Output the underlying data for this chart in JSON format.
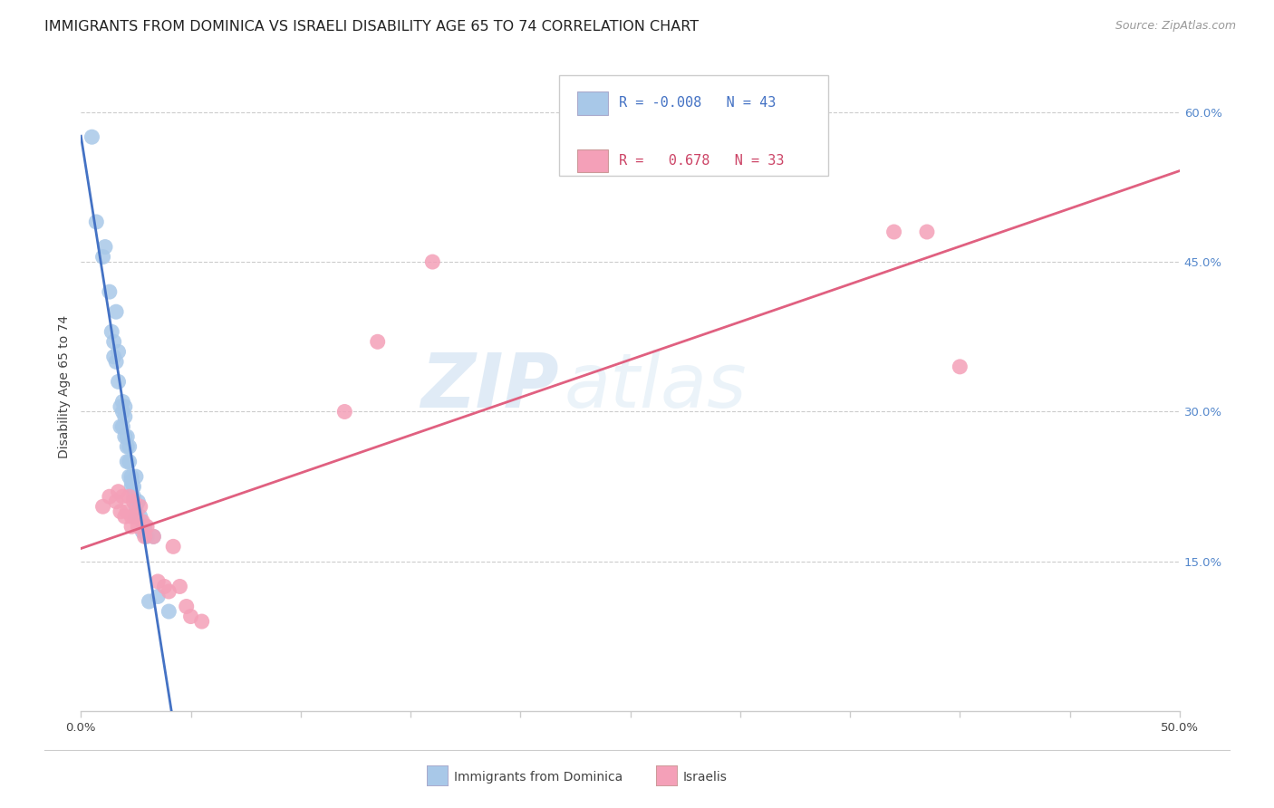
{
  "title": "IMMIGRANTS FROM DOMINICA VS ISRAELI DISABILITY AGE 65 TO 74 CORRELATION CHART",
  "source": "Source: ZipAtlas.com",
  "ylabel": "Disability Age 65 to 74",
  "xlim": [
    0.0,
    0.5
  ],
  "ylim": [
    0.0,
    0.65
  ],
  "xticks": [
    0.0,
    0.05,
    0.1,
    0.15,
    0.2,
    0.25,
    0.3,
    0.35,
    0.4,
    0.45,
    0.5
  ],
  "yticks_right": [
    0.15,
    0.3,
    0.45,
    0.6
  ],
  "ytick_labels_right": [
    "15.0%",
    "30.0%",
    "45.0%",
    "60.0%"
  ],
  "legend_r_blue": "-0.008",
  "legend_n_blue": "43",
  "legend_r_pink": "0.678",
  "legend_n_pink": "33",
  "blue_color": "#a8c8e8",
  "pink_color": "#f4a0b8",
  "blue_line_color": "#4472c4",
  "pink_line_color": "#e06080",
  "watermark_zip": "ZIP",
  "watermark_atlas": "atlas",
  "blue_dots_x": [
    0.005,
    0.007,
    0.01,
    0.011,
    0.013,
    0.014,
    0.015,
    0.015,
    0.016,
    0.016,
    0.017,
    0.017,
    0.018,
    0.018,
    0.019,
    0.019,
    0.019,
    0.02,
    0.02,
    0.02,
    0.021,
    0.021,
    0.021,
    0.022,
    0.022,
    0.022,
    0.023,
    0.023,
    0.023,
    0.024,
    0.024,
    0.025,
    0.025,
    0.025,
    0.026,
    0.027,
    0.028,
    0.029,
    0.03,
    0.031,
    0.033,
    0.035,
    0.04
  ],
  "blue_dots_y": [
    0.575,
    0.49,
    0.455,
    0.465,
    0.42,
    0.38,
    0.355,
    0.37,
    0.4,
    0.35,
    0.33,
    0.36,
    0.305,
    0.285,
    0.31,
    0.3,
    0.285,
    0.295,
    0.275,
    0.305,
    0.275,
    0.265,
    0.25,
    0.265,
    0.25,
    0.235,
    0.235,
    0.225,
    0.23,
    0.225,
    0.215,
    0.205,
    0.195,
    0.235,
    0.21,
    0.195,
    0.18,
    0.185,
    0.175,
    0.11,
    0.175,
    0.115,
    0.1
  ],
  "pink_dots_x": [
    0.01,
    0.013,
    0.016,
    0.017,
    0.018,
    0.019,
    0.02,
    0.021,
    0.022,
    0.023,
    0.023,
    0.024,
    0.025,
    0.026,
    0.027,
    0.028,
    0.029,
    0.03,
    0.033,
    0.035,
    0.038,
    0.04,
    0.042,
    0.045,
    0.048,
    0.05,
    0.055,
    0.12,
    0.135,
    0.16,
    0.37,
    0.385,
    0.4
  ],
  "pink_dots_y": [
    0.205,
    0.215,
    0.21,
    0.22,
    0.2,
    0.215,
    0.195,
    0.2,
    0.215,
    0.195,
    0.185,
    0.21,
    0.195,
    0.185,
    0.205,
    0.19,
    0.175,
    0.185,
    0.175,
    0.13,
    0.125,
    0.12,
    0.165,
    0.125,
    0.105,
    0.095,
    0.09,
    0.3,
    0.37,
    0.45,
    0.48,
    0.48,
    0.345
  ],
  "legend_label_blue": "Immigrants from Dominica",
  "legend_label_pink": "Israelis",
  "title_fontsize": 11.5,
  "axis_label_fontsize": 10,
  "tick_fontsize": 9.5,
  "legend_fontsize": 11
}
